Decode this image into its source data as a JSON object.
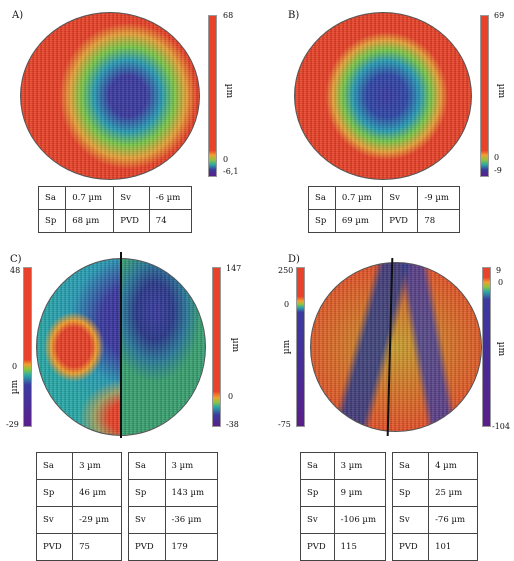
{
  "panels": {
    "A": {
      "label": "A)",
      "colorbar": {
        "max": "68",
        "zero": "0",
        "min": "-6,1",
        "unit": "µm"
      },
      "params": [
        [
          "Sa",
          "0.7 µm",
          "Sv",
          "-6 µm"
        ],
        [
          "Sp",
          "68 µm",
          "PVD",
          "74"
        ]
      ]
    },
    "B": {
      "label": "B)",
      "colorbar": {
        "max": "69",
        "zero": "0",
        "min": "-9",
        "unit": "µm"
      },
      "params": [
        [
          "Sa",
          "0.7 µm",
          "Sv",
          "-9 µm"
        ],
        [
          "Sp",
          "69 µm",
          "PVD",
          "78"
        ]
      ]
    },
    "C": {
      "label": "C)",
      "left_colorbar": {
        "max": "48",
        "zero": "0",
        "min": "-29",
        "unit": "µm"
      },
      "right_colorbar": {
        "max": "147",
        "zero": "0",
        "min": "-38",
        "unit": "µm"
      },
      "params_left": [
        [
          "Sa",
          "3 µm"
        ],
        [
          "Sp",
          "46 µm"
        ],
        [
          "Sv",
          "-29 µm"
        ],
        [
          "PVD",
          "75"
        ]
      ],
      "params_right": [
        [
          "Sa",
          "3 µm"
        ],
        [
          "Sp",
          "143 µm"
        ],
        [
          "Sv",
          "-36 µm"
        ],
        [
          "PVD",
          "179"
        ]
      ]
    },
    "D": {
      "label": "D)",
      "left_colorbar": {
        "max": "250",
        "zero": "0",
        "min": "-75",
        "unit": "µm"
      },
      "right_colorbar": {
        "max": "9",
        "zero": "0",
        "min": "-104",
        "unit": "µm"
      },
      "params_left": [
        [
          "Sa",
          "3 µm"
        ],
        [
          "Sp",
          "9 µm"
        ],
        [
          "Sv",
          "-106 µm"
        ],
        [
          "PVD",
          "115"
        ]
      ],
      "params_right": [
        [
          "Sa",
          "4 µm"
        ],
        [
          "Sp",
          "25 µm"
        ],
        [
          "Sv",
          "-76 µm"
        ],
        [
          "PVD",
          "101"
        ]
      ]
    }
  },
  "colors": {
    "high": "#e8432a",
    "mid_high": "#f0a030",
    "mid": "#8cc63e",
    "low_mid": "#2aa8a8",
    "low": "#3b3ba0",
    "min": "#5a1e8c"
  }
}
